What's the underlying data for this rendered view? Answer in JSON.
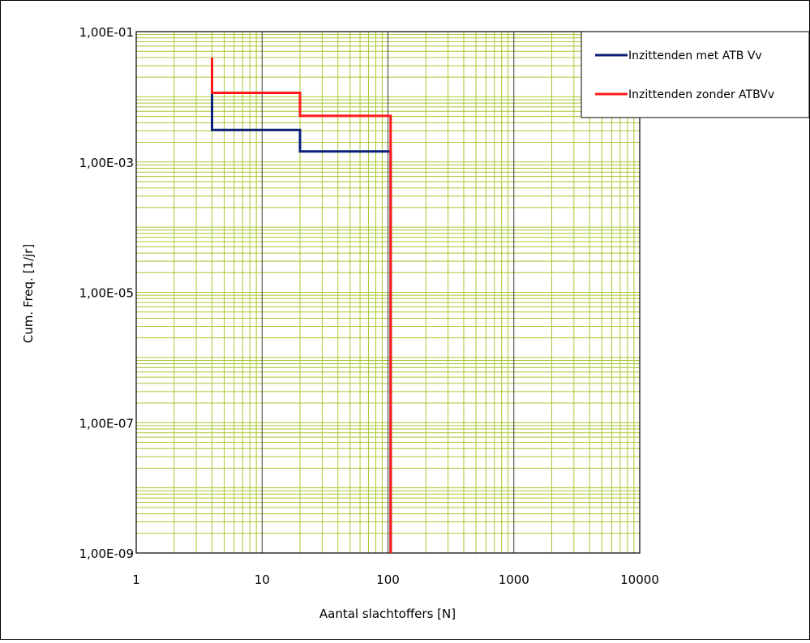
{
  "chart_data": {
    "type": "line",
    "title": "",
    "xlabel": "Aantal slachtoffers [N]",
    "ylabel": "Cum. Freq. [1/jr]",
    "x_scale": "log",
    "y_scale": "log",
    "xlim": [
      1,
      10000
    ],
    "ylim": [
      1e-09,
      0.1
    ],
    "x_ticks": [
      1,
      10,
      100,
      1000,
      10000
    ],
    "x_tick_labels": [
      "1",
      "10",
      "100",
      "1000",
      "10000"
    ],
    "y_ticks": [
      0.1,
      0.001,
      1e-05,
      1e-07,
      1e-09
    ],
    "y_tick_labels": [
      "1,00E-01",
      "1,00E-03",
      "1,00E-05",
      "1,00E-07",
      "1,00E-09"
    ],
    "grid": true,
    "legend_position": "top-right",
    "series": [
      {
        "name": "Inzittenden met ATB Vv",
        "color": "#0a1f7a",
        "step": true,
        "x": [
          4,
          4,
          20,
          20,
          105,
          105
        ],
        "y": [
          0.011,
          0.0031,
          0.0031,
          0.00145,
          0.00145,
          1e-09
        ]
      },
      {
        "name": "Inzittenden zonder ATBVv",
        "color": "#ff1a1a",
        "step": true,
        "x": [
          4,
          4,
          20,
          20,
          105,
          105
        ],
        "y": [
          0.04,
          0.0115,
          0.0115,
          0.0051,
          0.0051,
          1e-09
        ]
      }
    ],
    "colors": {
      "minor_grid": "#a8c832",
      "major_grid": "#3a3a3a",
      "frame": "#000000"
    }
  }
}
